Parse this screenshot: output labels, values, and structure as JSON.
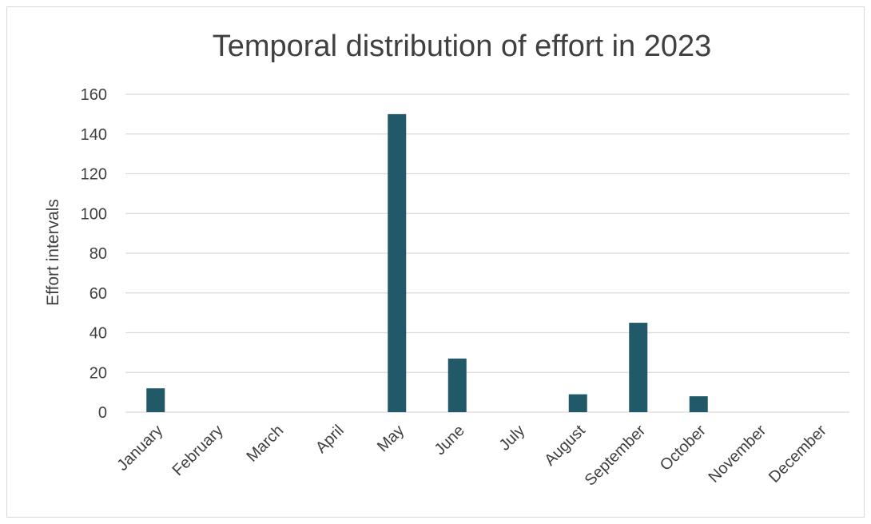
{
  "chart_data": {
    "type": "bar",
    "title": "Temporal distribution of effort in 2023",
    "xlabel": "",
    "ylabel": "Effort intervals",
    "categories": [
      "January",
      "February",
      "March",
      "April",
      "May",
      "June",
      "July",
      "August",
      "September",
      "October",
      "November",
      "December"
    ],
    "values": [
      12,
      0,
      0,
      0,
      150,
      27,
      0,
      9,
      45,
      8,
      0,
      0
    ],
    "ylim": [
      0,
      160
    ],
    "yticks": [
      0,
      20,
      40,
      60,
      80,
      100,
      120,
      140,
      160
    ],
    "grid": true,
    "legend": "none",
    "bar_color": "#215968",
    "gridline_color": "#d9d9d9",
    "text_color": "#404040"
  }
}
